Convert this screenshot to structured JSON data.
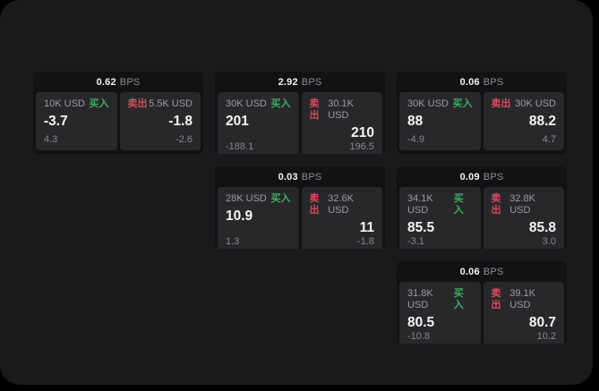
{
  "colors": {
    "page_bg": "#000000",
    "panel_bg": "#1a1a1c",
    "card_bg": "#121214",
    "tile_bg": "#28282b",
    "text_primary": "#f5f5f6",
    "text_secondary": "#9d9da2",
    "text_dim": "#87878c",
    "buy_green": "#3fae5e",
    "sell_red": "#d84a5f"
  },
  "labels": {
    "buy": "买入",
    "sell": "卖出",
    "bps_unit": "BPS"
  },
  "cards": [
    {
      "row": 1,
      "col": 1,
      "bps": "0.62",
      "buy": {
        "amount": "10K USD",
        "price": "-3.7",
        "delta": "4.3"
      },
      "sell": {
        "amount": "5.5K USD",
        "price": "-1.8",
        "delta": "-2.6"
      }
    },
    {
      "row": 1,
      "col": 2,
      "bps": "2.92",
      "buy": {
        "amount": "30K USD",
        "price": "201",
        "delta": "-188.1"
      },
      "sell": {
        "amount": "30.1K USD",
        "price": "210",
        "delta": "196.5"
      }
    },
    {
      "row": 1,
      "col": 3,
      "bps": "0.06",
      "buy": {
        "amount": "30K USD",
        "price": "88",
        "delta": "-4.9"
      },
      "sell": {
        "amount": "30K USD",
        "price": "88.2",
        "delta": "4.7"
      }
    },
    {
      "row": 2,
      "col": 2,
      "bps": "0.03",
      "buy": {
        "amount": "28K USD",
        "price": "10.9",
        "delta": "1.3"
      },
      "sell": {
        "amount": "32.6K USD",
        "price": "11",
        "delta": "-1.8"
      }
    },
    {
      "row": 2,
      "col": 3,
      "bps": "0.09",
      "buy": {
        "amount": "34.1K USD",
        "price": "85.5",
        "delta": "-3.1"
      },
      "sell": {
        "amount": "32.8K USD",
        "price": "85.8",
        "delta": "3.0"
      }
    },
    {
      "row": 3,
      "col": 3,
      "bps": "0.06",
      "buy": {
        "amount": "31.8K USD",
        "price": "80.5",
        "delta": "-10.8"
      },
      "sell": {
        "amount": "39.1K USD",
        "price": "80.7",
        "delta": "10.2"
      }
    }
  ]
}
